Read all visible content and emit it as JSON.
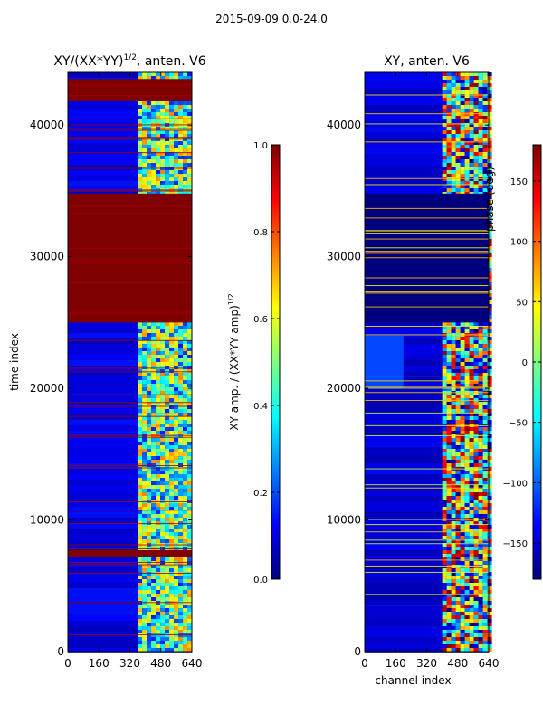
{
  "figure_title": "2015-09-09 0.0-24.0",
  "colors": {
    "jet_stops": [
      "#00007f",
      "#0000ff",
      "#007fff",
      "#00ffff",
      "#7fff7f",
      "#ffff00",
      "#ff7f00",
      "#ff0000",
      "#7f0000"
    ]
  },
  "chart_data": [
    {
      "type": "heatmap",
      "title": "XY/(XX*YY)^{1/2}, anten. V6",
      "title_main": "XY/(XX*YY)",
      "title_sup": "1/2",
      "title_tail": ", anten. V6",
      "xlabel": "",
      "ylabel": "time index",
      "xlim": [
        0,
        640
      ],
      "ylim": [
        0,
        44000
      ],
      "xticks": [
        0,
        160,
        320,
        480,
        640
      ],
      "yticks": [
        0,
        10000,
        20000,
        30000,
        40000
      ],
      "colorbar": {
        "label": "XY amp. / (XX*YY amp)^{1/2}",
        "label_main": "XY amp. / (XX*YY amp)",
        "label_sup": "1/2",
        "range": [
          0.0,
          1.0
        ],
        "ticks": [
          "0.0",
          "0.2",
          "0.4",
          "0.6",
          "0.8",
          "1.0"
        ],
        "tick_values": [
          0.0,
          0.2,
          0.4,
          0.6,
          0.8,
          1.0
        ]
      },
      "regions": [
        {
          "t0": 25000,
          "t1": 34800,
          "value": 1.0,
          "desc": "saturated (max) block"
        },
        {
          "t0": 41800,
          "t1": 43500,
          "value": 1.0,
          "desc": "saturated top block"
        },
        {
          "t0": 7200,
          "t1": 7700,
          "value": 1.0,
          "desc": "saturated band"
        }
      ],
      "bright_channels": [
        360,
        640
      ],
      "background_value": 0.1
    },
    {
      "type": "heatmap",
      "title": "XY, anten. V6",
      "xlabel": "channel index",
      "ylabel": "",
      "xlim": [
        0,
        640
      ],
      "ylim": [
        0,
        44000
      ],
      "xticks": [
        0,
        160,
        320,
        480,
        640
      ],
      "yticks": [
        0,
        10000,
        20000,
        30000,
        40000
      ],
      "colorbar": {
        "label": "phase (deg)",
        "range": [
          -180,
          180
        ],
        "ticks": [
          "150",
          "100",
          "50",
          "0",
          "−50",
          "−100",
          "−150"
        ],
        "tick_values": [
          150,
          100,
          50,
          0,
          -50,
          -100,
          -150
        ]
      },
      "regions": [
        {
          "t0": 25000,
          "t1": 34800,
          "value": -180,
          "desc": "minimum-phase block"
        },
        {
          "t0": 20000,
          "t1": 24000,
          "channel_max": 200,
          "value": -110,
          "desc": "light-blue block"
        }
      ],
      "bright_channels": [
        400,
        640
      ],
      "background_value": -150
    }
  ]
}
